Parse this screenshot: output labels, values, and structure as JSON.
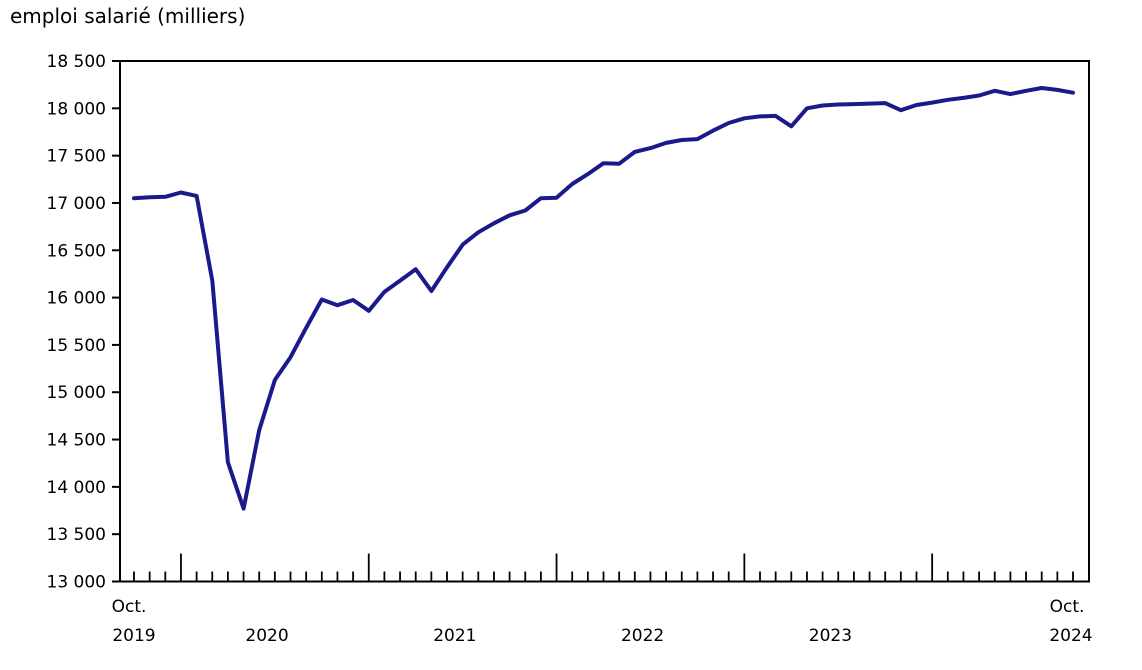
{
  "chart_data": {
    "type": "line",
    "title": "emploi salarié (milliers)",
    "ylabel": "",
    "xlabel": "",
    "ylim": [
      13000,
      18500
    ],
    "grid": false,
    "legend": "none",
    "line_color": "#1a1a8c",
    "axis_color": "#000000",
    "y_ticks": [
      18500,
      18000,
      17500,
      17000,
      16500,
      16000,
      15500,
      15000,
      14500,
      14000,
      13500,
      13000
    ],
    "y_tick_labels": [
      "18 500",
      "18 000",
      "17 500",
      "17 000",
      "16 500",
      "16 000",
      "15 500",
      "15 000",
      "14 500",
      "14 000",
      "13 500",
      "13 000"
    ],
    "x_axis_labels": {
      "left_month": "Oct.",
      "left_year": "2019",
      "mid_years": [
        "2020",
        "2021",
        "2022",
        "2023"
      ],
      "right_month": "Oct.",
      "right_year": "2024"
    },
    "x": [
      "2019-10",
      "2019-11",
      "2019-12",
      "2020-01",
      "2020-02",
      "2020-03",
      "2020-04",
      "2020-05",
      "2020-06",
      "2020-07",
      "2020-08",
      "2020-09",
      "2020-10",
      "2020-11",
      "2020-12",
      "2021-01",
      "2021-02",
      "2021-03",
      "2021-04",
      "2021-05",
      "2021-06",
      "2021-07",
      "2021-08",
      "2021-09",
      "2021-10",
      "2021-11",
      "2021-12",
      "2022-01",
      "2022-02",
      "2022-03",
      "2022-04",
      "2022-05",
      "2022-06",
      "2022-07",
      "2022-08",
      "2022-09",
      "2022-10",
      "2022-11",
      "2022-12",
      "2023-01",
      "2023-02",
      "2023-03",
      "2023-04",
      "2023-05",
      "2023-06",
      "2023-07",
      "2023-08",
      "2023-09",
      "2023-10",
      "2023-11",
      "2023-12",
      "2024-01",
      "2024-02",
      "2024-03",
      "2024-04",
      "2024-05",
      "2024-06",
      "2024-07",
      "2024-08",
      "2024-09",
      "2024-10"
    ],
    "series": [
      {
        "name": "emploi salarié (milliers)",
        "values": [
          17050,
          17060,
          17065,
          17110,
          17075,
          16180,
          14260,
          13770,
          14600,
          15130,
          15370,
          15680,
          15980,
          15920,
          15975,
          15860,
          16060,
          16180,
          16300,
          16070,
          16320,
          16560,
          16690,
          16785,
          16870,
          16920,
          17050,
          17055,
          17200,
          17305,
          17420,
          17415,
          17540,
          17580,
          17635,
          17665,
          17675,
          17765,
          17845,
          17895,
          17915,
          17920,
          17810,
          18000,
          18030,
          18040,
          18045,
          18050,
          18055,
          17980,
          18035,
          18060,
          18090,
          18110,
          18135,
          18185,
          18150,
          18185,
          18215,
          18195,
          18165
        ]
      }
    ]
  }
}
